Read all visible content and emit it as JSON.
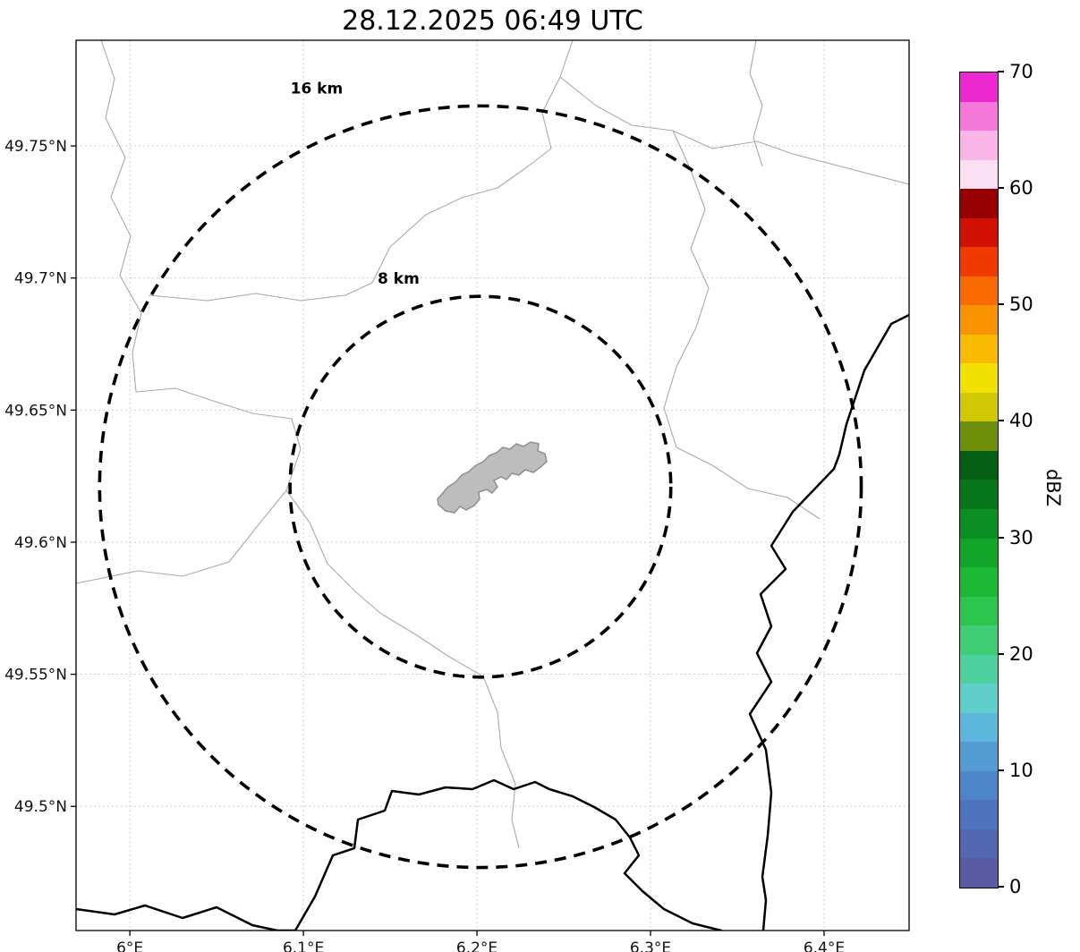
{
  "title": "28.12.2025 06:49 UTC",
  "map": {
    "extent": {
      "lon_min": 5.969,
      "lon_max": 6.449,
      "lat_min": 49.453,
      "lat_max": 49.79
    },
    "x_ticks": [
      {
        "lon": 6.0,
        "label": "6°E"
      },
      {
        "lon": 6.1,
        "label": "6.1°E"
      },
      {
        "lon": 6.2,
        "label": "6.2°E"
      },
      {
        "lon": 6.3,
        "label": "6.3°E"
      },
      {
        "lon": 6.4,
        "label": "6.4°E"
      }
    ],
    "y_ticks": [
      {
        "lat": 49.5,
        "label": "49.5°N"
      },
      {
        "lat": 49.55,
        "label": "49.55°N"
      },
      {
        "lat": 49.6,
        "label": "49.6°N"
      },
      {
        "lat": 49.65,
        "label": "49.65°N"
      },
      {
        "lat": 49.7,
        "label": "49.7°N"
      },
      {
        "lat": 49.75,
        "label": "49.75°N"
      }
    ],
    "radar_center": {
      "lon": 6.202,
      "lat": 49.621
    },
    "range_rings": [
      {
        "label": "8 km",
        "radius_km": 8
      },
      {
        "label": "16 km",
        "radius_km": 16
      }
    ],
    "city_shape_color": "#bdbdbd"
  },
  "colorbar": {
    "label": "dBZ",
    "min": 0,
    "max": 70,
    "tick_values": [
      0,
      10,
      20,
      30,
      40,
      50,
      60,
      70
    ],
    "segment_step_dbz": 2.5,
    "colors_bottom_to_top": [
      "#5b5ba3",
      "#5467b2",
      "#4e74bf",
      "#4c85c9",
      "#539bd3",
      "#5db6dc",
      "#5fceca",
      "#4ecfa0",
      "#3ecd74",
      "#2cc64e",
      "#1bb934",
      "#11a52a",
      "#0b8e22",
      "#07761b",
      "#045f14",
      "#6f8f0a",
      "#cfc803",
      "#f2e000",
      "#f8bb00",
      "#f99300",
      "#f96a00",
      "#f03a00",
      "#d01000",
      "#960000",
      "#fbdff3",
      "#f9b4e8",
      "#f678da",
      "#ee28d0"
    ]
  }
}
